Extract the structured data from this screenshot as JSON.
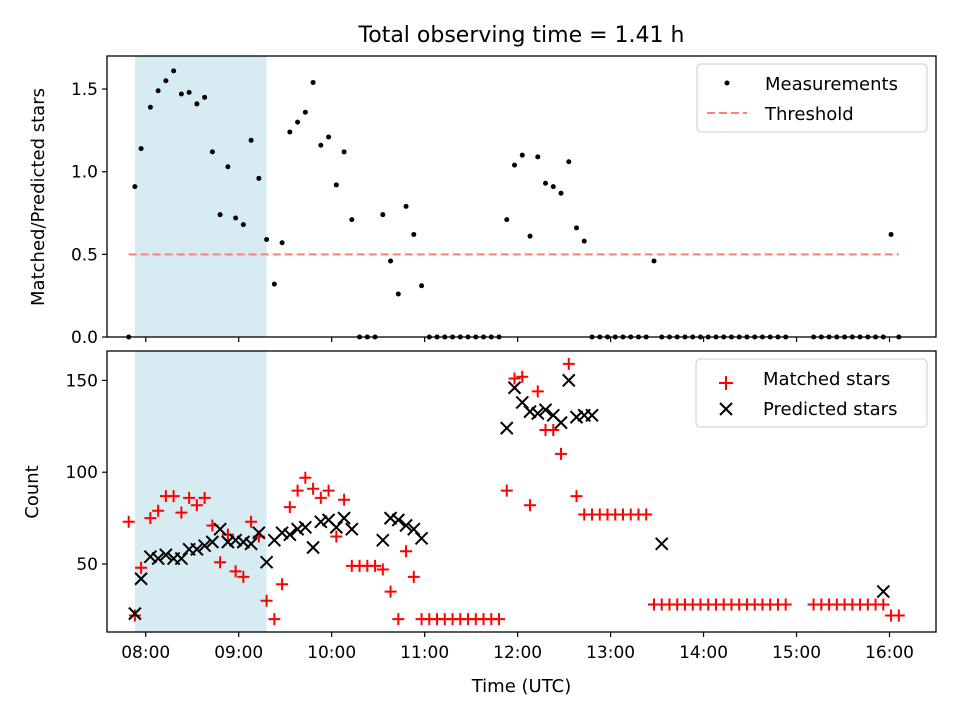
{
  "title": "Total observing time = 1.41 h",
  "colors": {
    "shade": "#add8e6",
    "measurement": "#000000",
    "threshold": "#ff7f7f",
    "matched": "#ff0000",
    "predicted": "#000000"
  },
  "chart_data": [
    {
      "type": "scatter",
      "ylabel": "Matched/Predicted stars",
      "ylim": [
        0,
        1.7
      ],
      "yticks": [
        0.0,
        0.5,
        1.0,
        1.5
      ],
      "ytick_labels": [
        "0.0",
        "0.5",
        "1.0",
        "1.5"
      ],
      "xlim": [
        "07:35",
        "16:30"
      ],
      "shaded_interval": [
        "07:53",
        "09:18"
      ],
      "legend": {
        "position": "top-right",
        "entries": [
          "Measurements",
          "Threshold"
        ]
      },
      "threshold": {
        "name": "Threshold",
        "value": 0.5,
        "x_range": [
          "07:49",
          "16:06"
        ],
        "style": "dashed"
      },
      "series": [
        {
          "name": "Measurements",
          "marker": "dot",
          "x": [
            "07:49",
            "07:53",
            "07:57",
            "08:03",
            "08:08",
            "08:13",
            "08:18",
            "08:23",
            "08:28",
            "08:33",
            "08:38",
            "08:43",
            "08:48",
            "08:53",
            "08:58",
            "09:03",
            "09:08",
            "09:13",
            "09:18",
            "09:23",
            "09:28",
            "09:33",
            "09:38",
            "09:43",
            "09:48",
            "09:53",
            "09:58",
            "10:03",
            "10:08",
            "10:13",
            "10:18",
            "10:23",
            "10:28",
            "10:33",
            "10:38",
            "10:43",
            "10:48",
            "10:53",
            "10:58",
            "11:03",
            "11:08",
            "11:13",
            "11:18",
            "11:23",
            "11:28",
            "11:33",
            "11:38",
            "11:43",
            "11:48",
            "11:53",
            "11:58",
            "12:03",
            "12:08",
            "12:13",
            "12:18",
            "12:23",
            "12:28",
            "12:33",
            "12:38",
            "12:43",
            "12:48",
            "12:53",
            "12:58",
            "13:03",
            "13:08",
            "13:13",
            "13:18",
            "13:23",
            "13:28",
            "13:33",
            "13:38",
            "13:43",
            "13:48",
            "13:53",
            "13:58",
            "14:03",
            "14:08",
            "14:13",
            "14:18",
            "14:23",
            "14:28",
            "14:33",
            "14:38",
            "14:43",
            "14:48",
            "14:53",
            "15:11",
            "15:16",
            "15:21",
            "15:26",
            "15:31",
            "15:36",
            "15:41",
            "15:46",
            "15:51",
            "15:56",
            "16:01",
            "16:06"
          ],
          "y": [
            0,
            0.91,
            1.14,
            1.39,
            1.49,
            1.55,
            1.61,
            1.47,
            1.48,
            1.41,
            1.45,
            1.12,
            0.74,
            1.03,
            0.72,
            0.68,
            1.19,
            0.96,
            0.59,
            0.32,
            0.57,
            1.24,
            1.3,
            1.36,
            1.54,
            1.16,
            1.21,
            0.92,
            1.12,
            0.71,
            0,
            0,
            0,
            0.74,
            0.46,
            0.26,
            0.79,
            0.62,
            0.31,
            0,
            0,
            0,
            0,
            0,
            0,
            0,
            0,
            0,
            0,
            0.71,
            1.04,
            1.1,
            0.61,
            1.09,
            0.93,
            0.91,
            0.87,
            1.06,
            0.66,
            0.58,
            0,
            0,
            0,
            0,
            0,
            0,
            0,
            0,
            0.46,
            0,
            0,
            0,
            0,
            0,
            0,
            0,
            0,
            0,
            0,
            0,
            0,
            0,
            0,
            0,
            0,
            0,
            0,
            0,
            0,
            0,
            0,
            0,
            0,
            0,
            0,
            0,
            0.62,
            0
          ]
        }
      ]
    },
    {
      "type": "scatter",
      "xlabel": "Time (UTC)",
      "ylabel": "Count",
      "ylim": [
        13,
        166
      ],
      "yticks": [
        50,
        100,
        150
      ],
      "ytick_labels": [
        "50",
        "100",
        "150"
      ],
      "xlim": [
        "07:35",
        "16:30"
      ],
      "xticks": [
        "08:00",
        "09:00",
        "10:00",
        "11:00",
        "12:00",
        "13:00",
        "14:00",
        "15:00",
        "16:00"
      ],
      "shaded_interval": [
        "07:53",
        "09:18"
      ],
      "legend": {
        "position": "top-right",
        "entries": [
          "Matched stars",
          "Predicted stars"
        ]
      },
      "series": [
        {
          "name": "Matched stars",
          "marker": "plus",
          "x": [
            "07:49",
            "07:53",
            "07:57",
            "08:03",
            "08:08",
            "08:13",
            "08:18",
            "08:23",
            "08:28",
            "08:33",
            "08:38",
            "08:43",
            "08:48",
            "08:53",
            "08:58",
            "09:03",
            "09:08",
            "09:13",
            "09:18",
            "09:23",
            "09:28",
            "09:33",
            "09:38",
            "09:43",
            "09:48",
            "09:53",
            "09:58",
            "10:03",
            "10:08",
            "10:13",
            "10:18",
            "10:23",
            "10:28",
            "10:33",
            "10:38",
            "10:43",
            "10:48",
            "10:53",
            "10:58",
            "11:03",
            "11:08",
            "11:13",
            "11:18",
            "11:23",
            "11:28",
            "11:33",
            "11:38",
            "11:43",
            "11:48",
            "11:53",
            "11:58",
            "12:03",
            "12:08",
            "12:13",
            "12:18",
            "12:23",
            "12:28",
            "12:33",
            "12:38",
            "12:43",
            "12:48",
            "12:53",
            "12:58",
            "13:03",
            "13:08",
            "13:13",
            "13:18",
            "13:23",
            "13:28",
            "13:33",
            "13:38",
            "13:43",
            "13:48",
            "13:53",
            "13:58",
            "14:03",
            "14:08",
            "14:13",
            "14:18",
            "14:23",
            "14:28",
            "14:33",
            "14:38",
            "14:43",
            "14:48",
            "14:53",
            "15:11",
            "15:16",
            "15:21",
            "15:26",
            "15:31",
            "15:36",
            "15:41",
            "15:46",
            "15:51",
            "15:56",
            "16:01",
            "16:06"
          ],
          "y": [
            73,
            22,
            48,
            75,
            79,
            87,
            87,
            78,
            86,
            82,
            86,
            71,
            51,
            66,
            46,
            43,
            73,
            65,
            30,
            20,
            39,
            81,
            90,
            97,
            91,
            86,
            90,
            65,
            85,
            49,
            49,
            49,
            49,
            47,
            35,
            20,
            57,
            43,
            20,
            20,
            20,
            20,
            20,
            20,
            20,
            20,
            20,
            20,
            20,
            90,
            151,
            152,
            82,
            144,
            123,
            123,
            110,
            159,
            87,
            77,
            77,
            77,
            77,
            77,
            77,
            77,
            77,
            77,
            28,
            28,
            28,
            28,
            28,
            28,
            28,
            28,
            28,
            28,
            28,
            28,
            28,
            28,
            28,
            28,
            28,
            28,
            28,
            28,
            28,
            28,
            28,
            28,
            28,
            28,
            28,
            28,
            22,
            22
          ]
        },
        {
          "name": "Predicted stars",
          "marker": "x",
          "x": [
            "07:53",
            "07:57",
            "08:03",
            "08:08",
            "08:13",
            "08:18",
            "08:23",
            "08:28",
            "08:33",
            "08:38",
            "08:43",
            "08:48",
            "08:53",
            "08:58",
            "09:03",
            "09:08",
            "09:13",
            "09:18",
            "09:23",
            "09:28",
            "09:33",
            "09:38",
            "09:43",
            "09:48",
            "09:53",
            "09:58",
            "10:03",
            "10:08",
            "10:13",
            "10:33",
            "10:38",
            "10:43",
            "10:48",
            "10:53",
            "10:58",
            "11:53",
            "11:58",
            "12:03",
            "12:08",
            "12:13",
            "12:18",
            "12:23",
            "12:28",
            "12:33",
            "12:38",
            "12:43",
            "12:48",
            "13:33",
            "15:56"
          ],
          "y": [
            23,
            42,
            54,
            53,
            55,
            53,
            53,
            58,
            58,
            60,
            62,
            69,
            62,
            63,
            62,
            61,
            67,
            51,
            63,
            67,
            66,
            69,
            70,
            59,
            73,
            74,
            70,
            75,
            69,
            63,
            75,
            74,
            71,
            69,
            64,
            124,
            146,
            138,
            133,
            132,
            134,
            131,
            127,
            150,
            130,
            131,
            131,
            61,
            35
          ]
        }
      ]
    }
  ]
}
